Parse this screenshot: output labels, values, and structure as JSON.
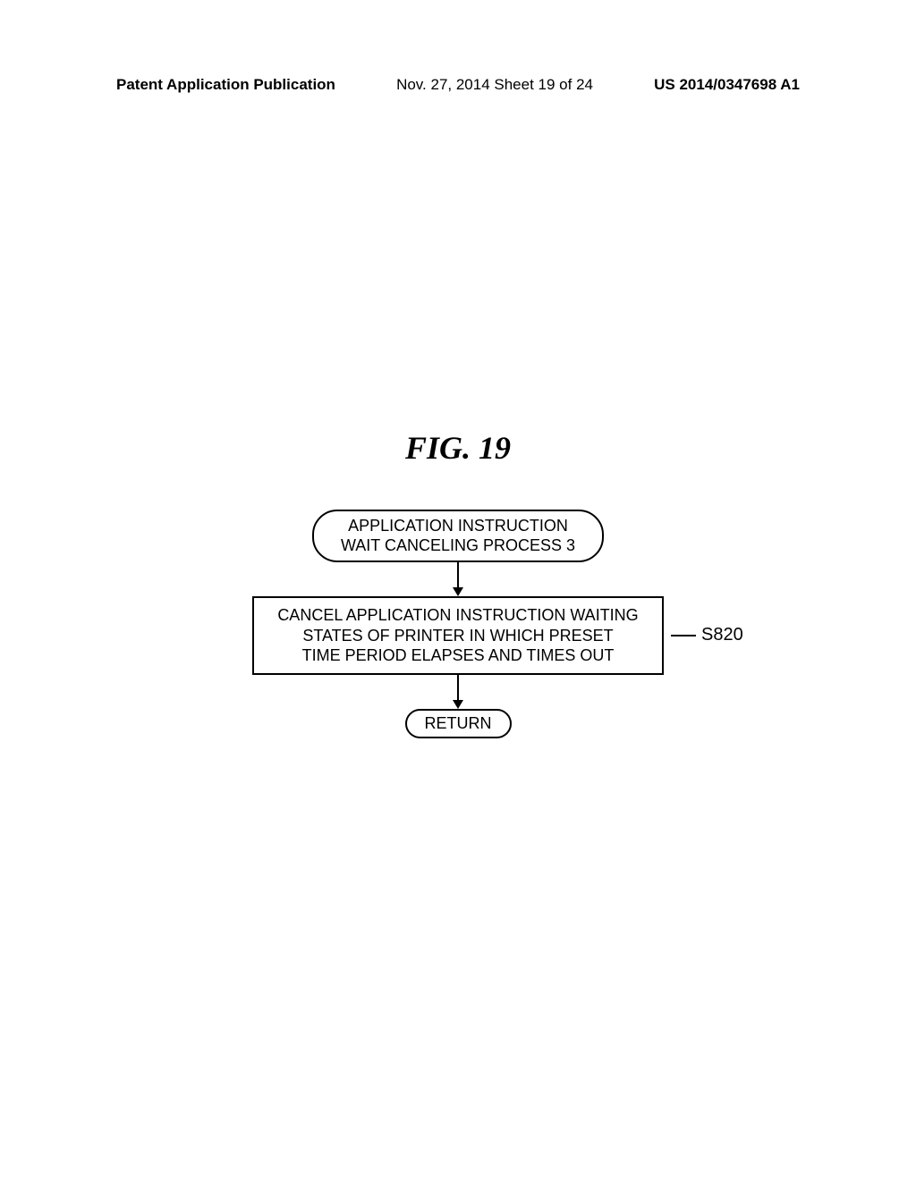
{
  "header": {
    "left": "Patent Application Publication",
    "center": "Nov. 27, 2014  Sheet 19 of 24",
    "right": "US 2014/0347698 A1"
  },
  "figure": {
    "title": "FIG. 19",
    "start_line1": "APPLICATION INSTRUCTION",
    "start_line2": "WAIT CANCELING PROCESS 3",
    "process_line1": "CANCEL APPLICATION INSTRUCTION WAITING",
    "process_line2": "STATES OF PRINTER IN WHICH PRESET",
    "process_line3": "TIME PERIOD ELAPSES AND TIMES OUT",
    "step_label": "S820",
    "return_label": "RETURN"
  },
  "style": {
    "arrow1_height": 28,
    "arrow2_height": 28
  }
}
